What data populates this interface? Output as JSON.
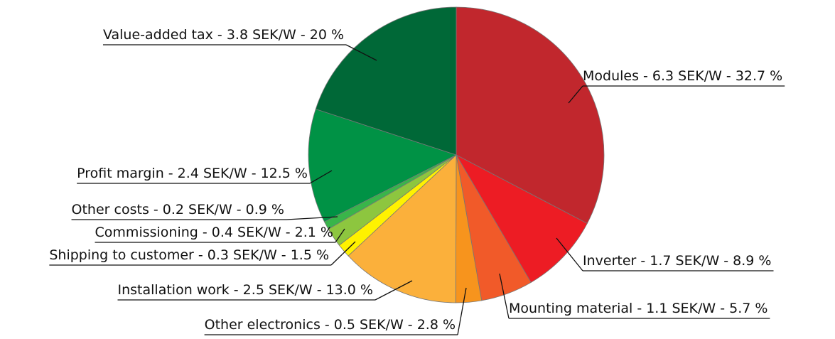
{
  "chart_data": {
    "type": "pie",
    "categories": [
      "Modules - 6.3 SEK/W - 32.7 %",
      "Inverter - 1.7 SEK/W - 8.9 %",
      "Mounting material - 1.1 SEK/W - 5.7 %",
      "Other electronics - 0.5 SEK/W - 2.8 %",
      "Installation work - 2.5 SEK/W - 13.0 %",
      "Shipping to customer - 0.3 SEK/W - 1.5 %",
      "Commissioning - 0.4 SEK/W - 2.1 %",
      "Other costs - 0.2 SEK/W - 0.9 %",
      "Profit margin - 2.4 SEK/W - 12.5 %",
      "Value-added tax - 3.8 SEK/W - 20 %"
    ],
    "values": [
      32.7,
      8.9,
      5.7,
      2.8,
      13.0,
      1.5,
      2.1,
      0.9,
      12.5,
      20
    ],
    "colors": [
      "#c1272d",
      "#ed1c24",
      "#f15a29",
      "#f7941d",
      "#fbb03b",
      "#fff200",
      "#8dc63f",
      "#39b54a",
      "#009245",
      "#006837"
    ]
  }
}
